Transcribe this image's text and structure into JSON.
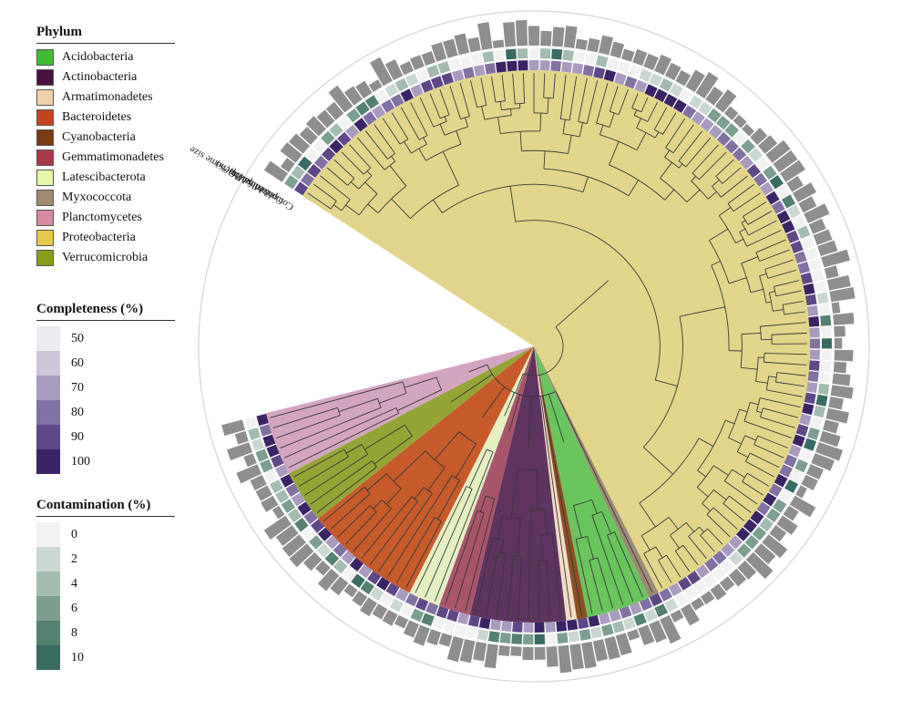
{
  "phylum_legend": {
    "title": "Phylum",
    "items": [
      {
        "label": "Acidobacteria",
        "color": "#3fbd32"
      },
      {
        "label": "Actinobacteria",
        "color": "#4a1040"
      },
      {
        "label": "Armatimonadetes",
        "color": "#f0d2a8"
      },
      {
        "label": "Bacteroidetes",
        "color": "#c2461b"
      },
      {
        "label": "Cyanobacteria",
        "color": "#7a3a12"
      },
      {
        "label": "Gemmatimonadetes",
        "color": "#a8384a"
      },
      {
        "label": "Latescibacterota",
        "color": "#e5f7a8"
      },
      {
        "label": "Myxococcota",
        "color": "#a08a70"
      },
      {
        "label": "Planctomycetes",
        "color": "#d88aa0"
      },
      {
        "label": "Proteobacteria",
        "color": "#e6c84a"
      },
      {
        "label": "Verrucomicrobia",
        "color": "#8a9e1a"
      }
    ]
  },
  "completeness_legend": {
    "title": "Completeness (%)",
    "items": [
      {
        "label": "50",
        "color": "#ececf0"
      },
      {
        "label": "60",
        "color": "#cec6d9"
      },
      {
        "label": "70",
        "color": "#a99bbf"
      },
      {
        "label": "80",
        "color": "#8271a3"
      },
      {
        "label": "90",
        "color": "#5f4888"
      },
      {
        "label": "100",
        "color": "#3b2466"
      }
    ]
  },
  "contamination_legend": {
    "title": "Contamination (%)",
    "items": [
      {
        "label": "0",
        "color": "#f2f2f2"
      },
      {
        "label": "2",
        "color": "#cbd8d2"
      },
      {
        "label": "4",
        "color": "#a3bcb0"
      },
      {
        "label": "6",
        "color": "#7c9f90"
      },
      {
        "label": "8",
        "color": "#558170"
      },
      {
        "label": "10",
        "color": "#386c62"
      }
    ]
  },
  "ring_labels": {
    "genome_size": "Genome size",
    "mbp6": "6 Mbp",
    "mbp3": "3 Mbp",
    "contamination": "Contamination (%)",
    "completeness": "Completeness (%)"
  },
  "colors": {
    "genome_bar": "#8e8e8e",
    "branch": "#3a3a3a",
    "outer_circle": "#d5d5d5",
    "clade_fill": {
      "Proteobacteria": "#e2d58b",
      "Planctomycetes": "#d4a5c0",
      "Verrucomicrobia": "#94a536",
      "Bacteroidetes": "#c65a2b",
      "Latescibacterota": "#e4f0c2",
      "Gemmatimonadetes": "#a9566a",
      "Actinobacteria": "#5e3460",
      "Armatimonadetes": "#f3dcc4",
      "Cyanobacteria": "#8a5026",
      "Acidobacteria": "#6ac45e",
      "Myxococcota": "#9c8a74"
    }
  },
  "tree": {
    "sectors": [
      {
        "name": "Proteobacteria",
        "count": 94
      },
      {
        "name": "Myxococcota",
        "count": 1
      },
      {
        "name": "Acidobacteria",
        "count": 6
      },
      {
        "name": "Cyanobacteria",
        "count": 1
      },
      {
        "name": "Armatimonadetes",
        "count": 1
      },
      {
        "name": "Actinobacteria",
        "count": 9
      },
      {
        "name": "Gemmatimonadetes",
        "count": 3
      },
      {
        "name": "Latescibacterota",
        "count": 3
      },
      {
        "name": "Bacteroidetes",
        "count": 11
      },
      {
        "name": "Verrucomicrobia",
        "count": 5
      },
      {
        "name": "Planctomycetes",
        "count": 6
      }
    ]
  }
}
